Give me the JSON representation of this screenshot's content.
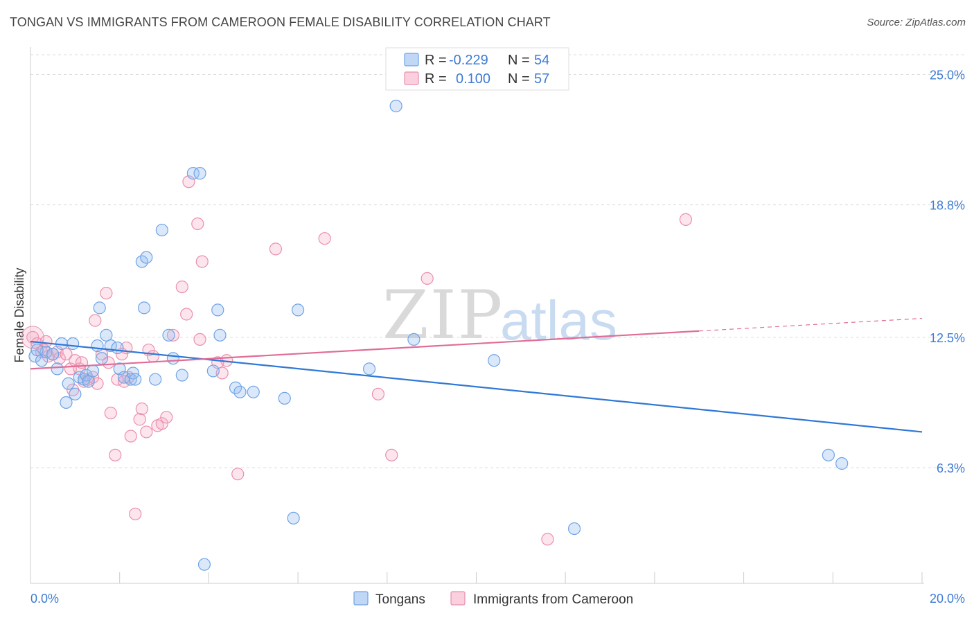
{
  "title": "TONGAN VS IMMIGRANTS FROM CAMEROON FEMALE DISABILITY CORRELATION CHART",
  "source": "Source: ZipAtlas.com",
  "colors": {
    "tongans": "#6fa3e6",
    "tongans_fill": "rgba(150,190,240,0.35)",
    "tongans_line": "#2f78d6",
    "cameroon": "#ea8fab",
    "cameroon_fill": "rgba(245,170,195,0.30)",
    "cameroon_line": "#e06d97",
    "tick_text": "#3d7bd4"
  },
  "watermark": {
    "zip": "ZIP",
    "atlas": "atlas"
  },
  "legend": {
    "r_label": "R =",
    "n_label": "N =",
    "rows": [
      {
        "r": "-0.229",
        "n": "54"
      },
      {
        "r": "0.100",
        "n": "57"
      }
    ]
  },
  "chart_data": {
    "type": "scatter",
    "title": "TONGAN VS IMMIGRANTS FROM CAMEROON FEMALE DISABILITY CORRELATION CHART",
    "xlabel": "",
    "ylabel": "Female Disability",
    "xlim": [
      0,
      20
    ],
    "ylim": [
      0.8,
      26.3
    ],
    "x_tick_labels": [
      "0.0%",
      "20.0%"
    ],
    "y_ticks": [
      6.3,
      12.5,
      18.8,
      25.0
    ],
    "y_tick_labels": [
      "6.3%",
      "12.5%",
      "18.8%",
      "25.0%"
    ],
    "grid": true,
    "legend_position": "top-center",
    "series": [
      {
        "name": "Tongans",
        "trend": {
          "x": [
            0,
            20
          ],
          "y": [
            12.3,
            8.0
          ]
        },
        "points": [
          [
            0.1,
            11.6
          ],
          [
            0.25,
            11.4
          ],
          [
            0.35,
            11.8
          ],
          [
            0.5,
            11.7
          ],
          [
            0.6,
            11.0
          ],
          [
            0.7,
            12.2
          ],
          [
            0.8,
            9.4
          ],
          [
            0.85,
            10.3
          ],
          [
            0.95,
            12.2
          ],
          [
            1.0,
            9.8
          ],
          [
            1.1,
            10.6
          ],
          [
            1.2,
            10.5
          ],
          [
            1.25,
            10.7
          ],
          [
            1.3,
            10.4
          ],
          [
            1.5,
            12.1
          ],
          [
            1.55,
            13.9
          ],
          [
            1.6,
            11.5
          ],
          [
            1.7,
            12.6
          ],
          [
            1.8,
            12.1
          ],
          [
            1.95,
            12.0
          ],
          [
            2.0,
            11.0
          ],
          [
            2.1,
            10.6
          ],
          [
            2.25,
            10.5
          ],
          [
            2.3,
            10.8
          ],
          [
            2.35,
            10.5
          ],
          [
            2.5,
            16.1
          ],
          [
            2.55,
            13.9
          ],
          [
            2.6,
            16.3
          ],
          [
            2.8,
            10.5
          ],
          [
            2.95,
            17.6
          ],
          [
            3.1,
            12.6
          ],
          [
            3.2,
            11.5
          ],
          [
            3.4,
            10.7
          ],
          [
            3.65,
            20.3
          ],
          [
            3.8,
            20.3
          ],
          [
            3.9,
            1.7
          ],
          [
            4.1,
            10.9
          ],
          [
            4.2,
            13.8
          ],
          [
            4.25,
            12.6
          ],
          [
            4.6,
            10.1
          ],
          [
            4.7,
            9.9
          ],
          [
            5.0,
            9.9
          ],
          [
            5.7,
            9.6
          ],
          [
            5.9,
            3.9
          ],
          [
            6.0,
            13.8
          ],
          [
            7.6,
            11.0
          ],
          [
            8.2,
            23.5
          ],
          [
            8.6,
            12.4
          ],
          [
            10.4,
            11.4
          ],
          [
            12.2,
            3.4
          ],
          [
            17.9,
            6.9
          ],
          [
            18.2,
            6.5
          ],
          [
            0.15,
            11.9
          ],
          [
            1.4,
            10.9
          ]
        ]
      },
      {
        "name": "Immigrants from Cameroon",
        "trend": {
          "x": [
            0,
            15
          ],
          "y": [
            11.0,
            12.8
          ]
        },
        "trend_dashed": {
          "x": [
            15,
            20
          ],
          "y": [
            12.8,
            13.4
          ]
        },
        "points": [
          [
            0.05,
            12.5
          ],
          [
            0.15,
            12.2
          ],
          [
            0.25,
            11.8
          ],
          [
            0.3,
            11.9
          ],
          [
            0.35,
            12.3
          ],
          [
            0.4,
            11.6
          ],
          [
            0.5,
            11.7
          ],
          [
            0.6,
            11.8
          ],
          [
            0.65,
            11.5
          ],
          [
            0.8,
            11.7
          ],
          [
            0.9,
            11.0
          ],
          [
            0.95,
            10.0
          ],
          [
            1.0,
            11.4
          ],
          [
            1.1,
            11.0
          ],
          [
            1.15,
            11.3
          ],
          [
            1.2,
            10.4
          ],
          [
            1.3,
            10.5
          ],
          [
            1.4,
            10.6
          ],
          [
            1.45,
            13.3
          ],
          [
            1.5,
            10.3
          ],
          [
            1.6,
            11.7
          ],
          [
            1.7,
            14.6
          ],
          [
            1.75,
            11.3
          ],
          [
            1.8,
            8.9
          ],
          [
            1.9,
            6.9
          ],
          [
            1.95,
            10.5
          ],
          [
            2.05,
            11.7
          ],
          [
            2.1,
            10.4
          ],
          [
            2.15,
            12.0
          ],
          [
            2.2,
            10.6
          ],
          [
            2.25,
            7.8
          ],
          [
            2.35,
            4.1
          ],
          [
            2.45,
            8.6
          ],
          [
            2.5,
            9.1
          ],
          [
            2.6,
            8.0
          ],
          [
            2.65,
            11.9
          ],
          [
            2.75,
            11.6
          ],
          [
            2.85,
            8.3
          ],
          [
            2.95,
            8.4
          ],
          [
            3.05,
            8.7
          ],
          [
            3.2,
            12.6
          ],
          [
            3.4,
            14.9
          ],
          [
            3.5,
            13.6
          ],
          [
            3.55,
            19.9
          ],
          [
            3.75,
            17.9
          ],
          [
            3.8,
            12.4
          ],
          [
            3.85,
            16.1
          ],
          [
            4.2,
            11.3
          ],
          [
            4.3,
            10.8
          ],
          [
            4.4,
            11.4
          ],
          [
            4.65,
            6.0
          ],
          [
            5.5,
            16.7
          ],
          [
            6.6,
            17.2
          ],
          [
            7.8,
            9.8
          ],
          [
            8.1,
            6.9
          ],
          [
            8.9,
            15.3
          ],
          [
            11.6,
            2.9
          ],
          [
            14.7,
            18.1
          ]
        ]
      }
    ]
  },
  "bottom_legend": [
    {
      "label": "Tongans"
    },
    {
      "label": "Immigrants from Cameroon"
    }
  ]
}
